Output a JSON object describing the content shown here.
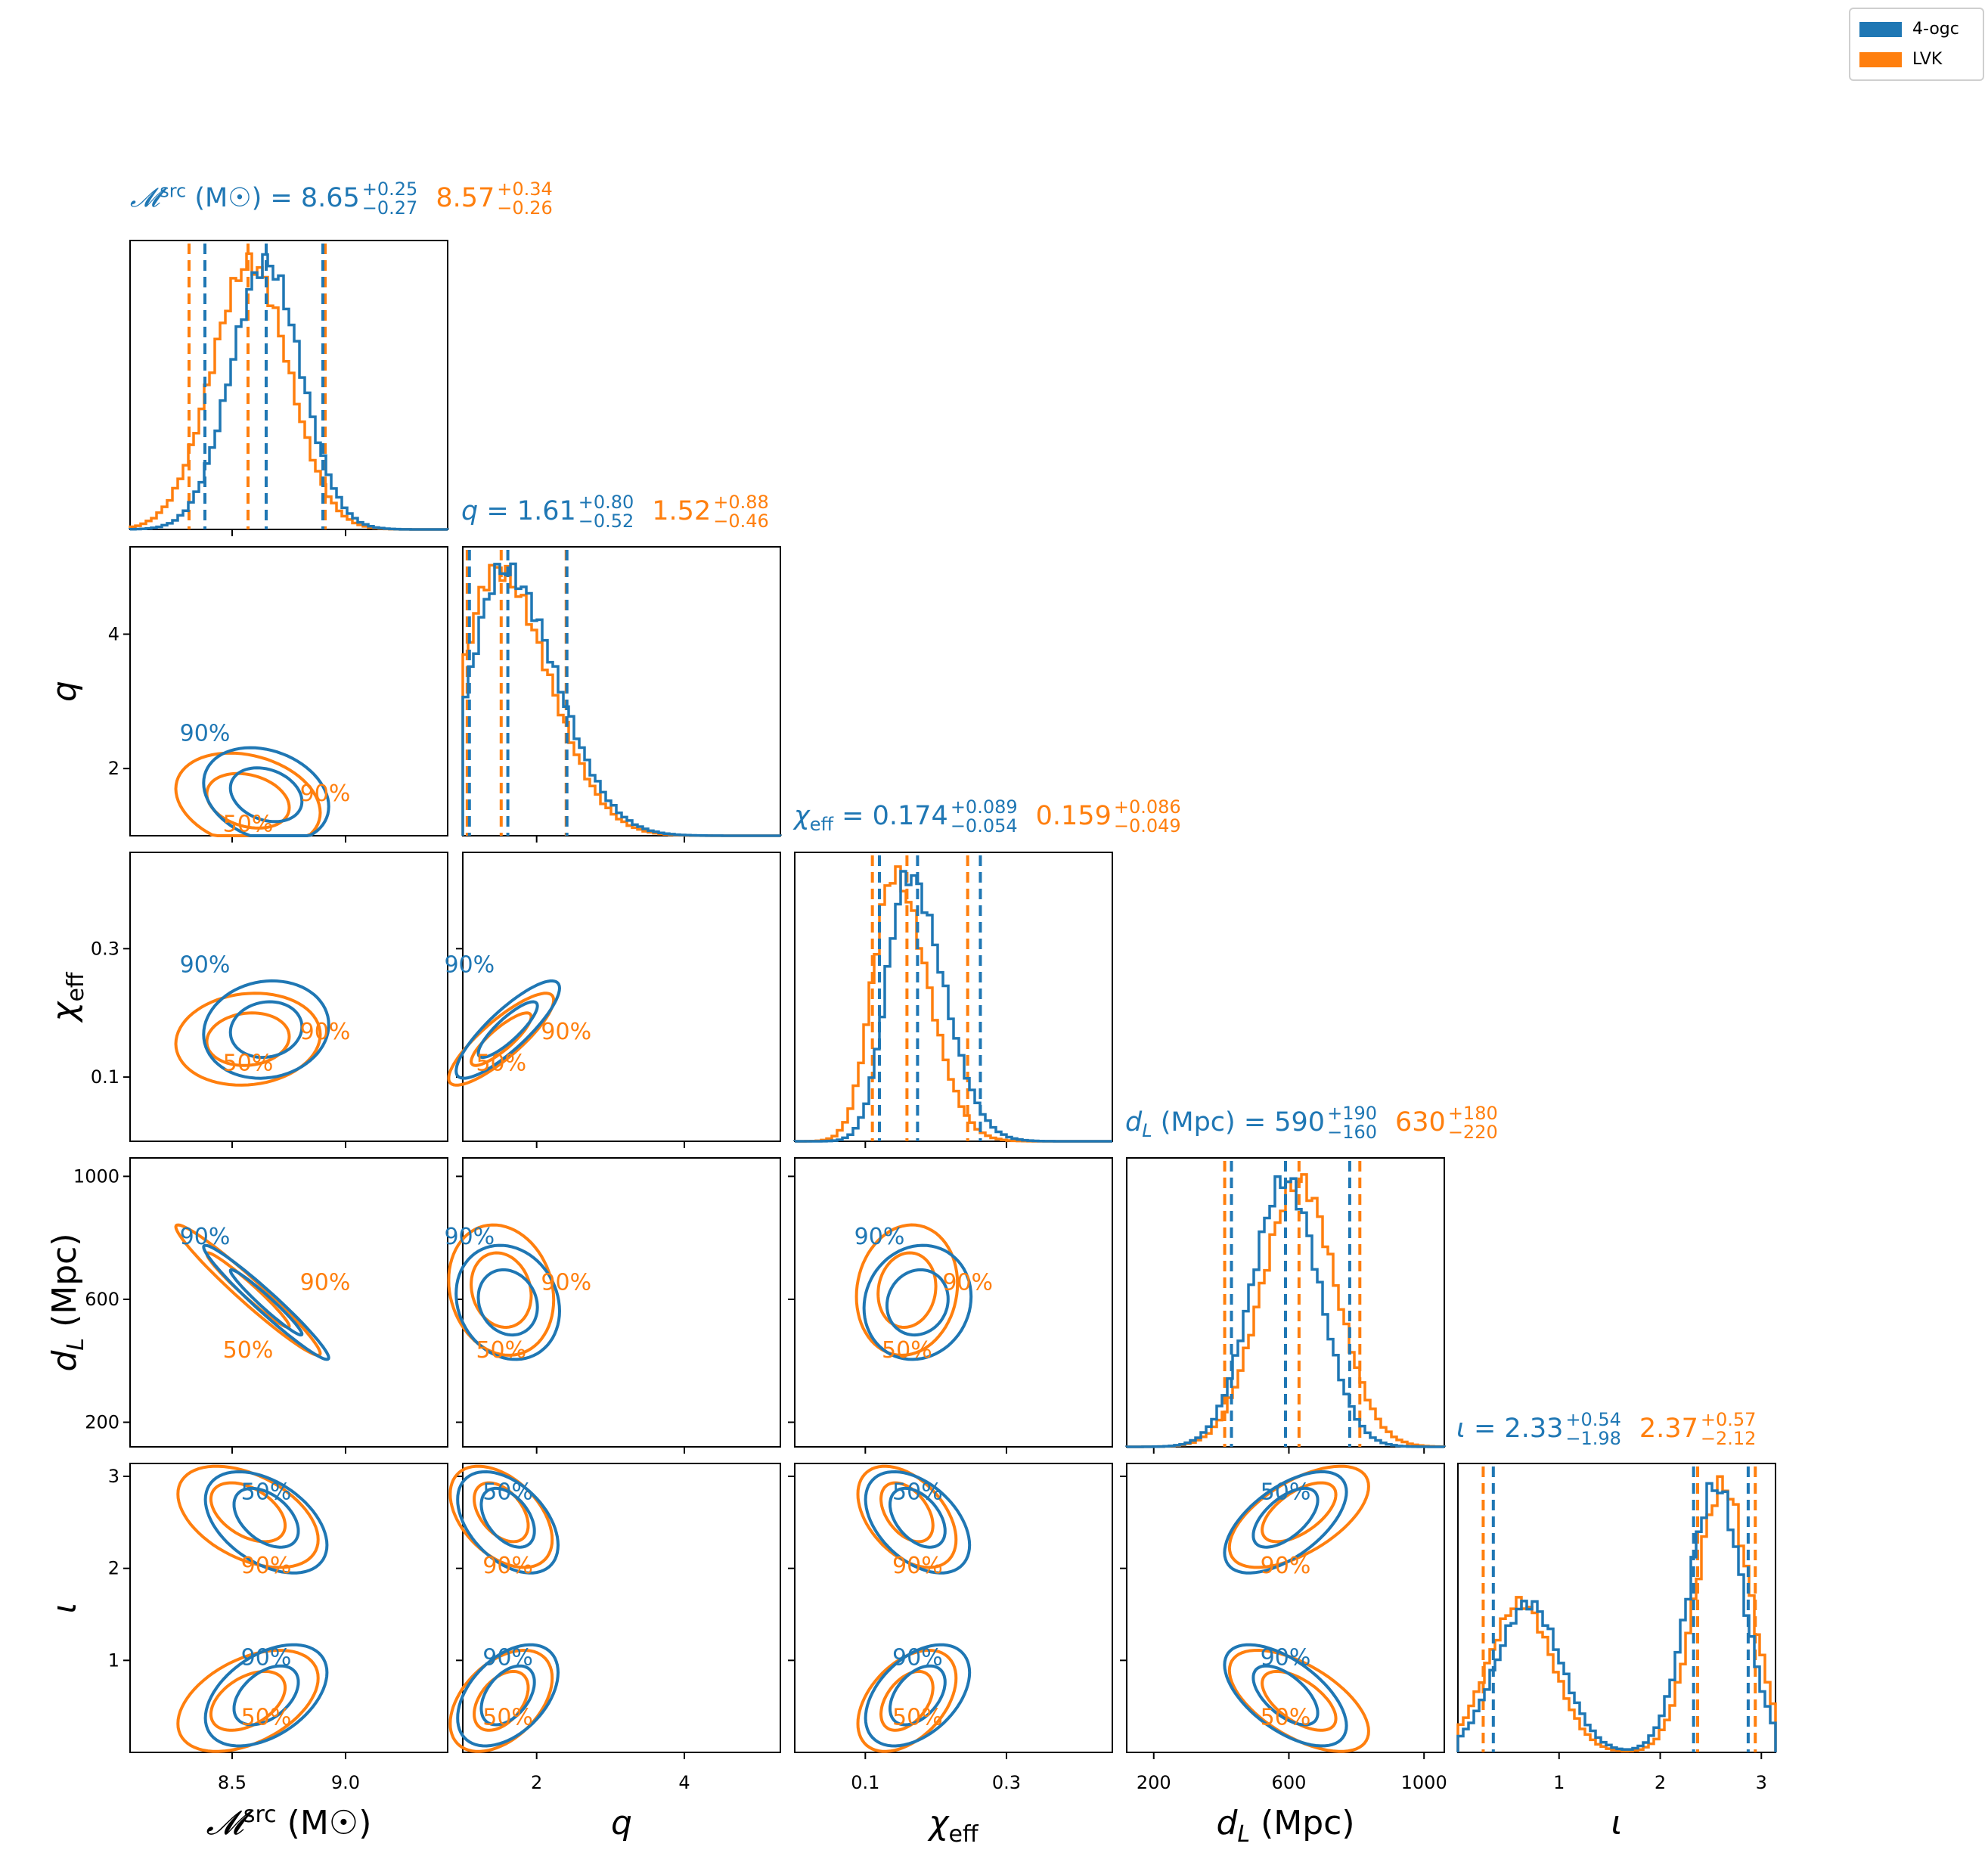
{
  "legend": {
    "items": [
      {
        "label": "4-ogc",
        "color": "#1f77b4"
      },
      {
        "label": "LVK",
        "color": "#ff7f0e"
      }
    ]
  },
  "colors": {
    "ogc": "#1f77b4",
    "lvk": "#ff7f0e"
  },
  "parameters": [
    {
      "key": "mchirp",
      "axis_label": "𝓜ˢʳᶜ (M☉)",
      "ticks": [
        8.5,
        9.0
      ],
      "tick_labels": [
        "8.5",
        "9.0"
      ],
      "range": [
        8.05,
        9.45
      ],
      "title": {
        "symbol": "𝓜",
        "sup": "src",
        "unit": " (M☉)",
        "ogc": {
          "median": "8.65",
          "plus": "+0.25",
          "minus": "−0.27"
        },
        "lvk": {
          "median": "8.57",
          "plus": "+0.34",
          "minus": "−0.26"
        }
      }
    },
    {
      "key": "q",
      "axis_label": "q",
      "ticks": [
        2,
        4
      ],
      "tick_labels": [
        "2",
        "4"
      ],
      "range": [
        1.0,
        5.3
      ],
      "title": {
        "symbol": "q",
        "sup": "",
        "unit": "",
        "ogc": {
          "median": "1.61",
          "plus": "+0.80",
          "minus": "−0.52"
        },
        "lvk": {
          "median": "1.52",
          "plus": "+0.88",
          "minus": "−0.46"
        }
      }
    },
    {
      "key": "chi_eff",
      "axis_label": "χeff",
      "ticks": [
        0.1,
        0.3
      ],
      "tick_labels": [
        "0.1",
        "0.3"
      ],
      "range": [
        0.0,
        0.45
      ],
      "title": {
        "symbol": "χ",
        "sub": "eff",
        "unit": "",
        "ogc": {
          "median": "0.174",
          "plus": "+0.089",
          "minus": "−0.054"
        },
        "lvk": {
          "median": "0.159",
          "plus": "+0.086",
          "minus": "−0.049"
        }
      }
    },
    {
      "key": "dl",
      "axis_label": "dL (Mpc)",
      "ticks": [
        200,
        600,
        1000
      ],
      "tick_labels": [
        "200",
        "600",
        "1000"
      ],
      "range": [
        120,
        1060
      ],
      "title": {
        "symbol": "d",
        "sub": "L",
        "unit": " (Mpc)",
        "ogc": {
          "median": "590",
          "plus": "+190",
          "minus": "−160"
        },
        "lvk": {
          "median": "630",
          "plus": "+180",
          "minus": "−220"
        }
      }
    },
    {
      "key": "iota",
      "axis_label": "ι",
      "ticks": [
        1,
        2,
        3
      ],
      "tick_labels": [
        "1",
        "2",
        "3"
      ],
      "range": [
        0.0,
        3.14
      ],
      "title": {
        "symbol": "ι",
        "sup": "",
        "unit": "",
        "ogc": {
          "median": "2.33",
          "plus": "+0.54",
          "minus": "−1.98"
        },
        "lvk": {
          "median": "2.37",
          "plus": "+0.57",
          "minus": "−2.12"
        }
      }
    }
  ],
  "chart_data": {
    "type": "corner",
    "series": [
      {
        "name": "4-ogc",
        "marginals": {
          "mchirp": {
            "median": 8.65,
            "lower": 8.38,
            "upper": 8.9,
            "mean": 8.65,
            "sd": 0.155
          },
          "q": {
            "median": 1.61,
            "lower": 1.09,
            "upper": 2.41
          },
          "chi_eff": {
            "median": 0.174,
            "lower": 0.12,
            "upper": 0.263
          },
          "dl": {
            "median": 590,
            "lower": 430,
            "upper": 780,
            "mean": 590,
            "sd": 100
          },
          "iota": {
            "median": 2.33,
            "lower": 0.35,
            "upper": 2.87
          }
        }
      },
      {
        "name": "LVK",
        "marginals": {
          "mchirp": {
            "median": 8.57,
            "lower": 8.31,
            "upper": 8.91,
            "mean": 8.58,
            "sd": 0.17
          },
          "q": {
            "median": 1.52,
            "lower": 1.06,
            "upper": 2.4
          },
          "chi_eff": {
            "median": 0.159,
            "lower": 0.11,
            "upper": 0.245
          },
          "dl": {
            "median": 630,
            "lower": 410,
            "upper": 810,
            "mean": 630,
            "sd": 110
          },
          "iota": {
            "median": 2.37,
            "lower": 0.25,
            "upper": 2.94
          }
        }
      }
    ],
    "contour_levels": [
      "50%",
      "90%"
    ]
  }
}
